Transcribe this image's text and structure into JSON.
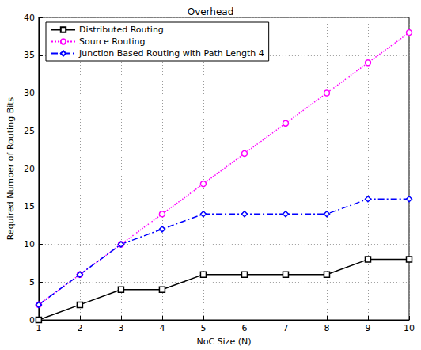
{
  "chart_data": {
    "type": "line",
    "title": "Overhead",
    "x_label": "NoC Size (N)",
    "y_label": "Required Number of Routing Bits",
    "x": [
      1,
      2,
      3,
      4,
      5,
      6,
      7,
      8,
      9,
      10
    ],
    "series": [
      {
        "name": "Distributed Routing",
        "color": "#000000",
        "marker": "square",
        "line_style": "solid",
        "values": [
          0,
          2,
          4,
          4,
          6,
          6,
          6,
          6,
          8,
          8
        ]
      },
      {
        "name": "Source Routing",
        "color": "#ff00ff",
        "marker": "circle",
        "line_style": "dotted",
        "values": [
          2,
          6,
          10,
          14,
          18,
          22,
          26,
          30,
          34,
          38
        ]
      },
      {
        "name": "Junction Based Routing with Path Length 4",
        "color": "#0000ff",
        "marker": "diamond",
        "line_style": "dashdot",
        "values": [
          2,
          6,
          10,
          12,
          14,
          14,
          14,
          14,
          16,
          16
        ]
      }
    ],
    "xlim": [
      1,
      10
    ],
    "xticks": [
      1,
      2,
      3,
      4,
      5,
      6,
      7,
      8,
      9,
      10
    ],
    "ylim": [
      0,
      40
    ],
    "yticks": [
      0,
      5,
      10,
      15,
      20,
      25,
      30,
      35,
      40
    ],
    "grid": true,
    "legend": "upper left"
  }
}
